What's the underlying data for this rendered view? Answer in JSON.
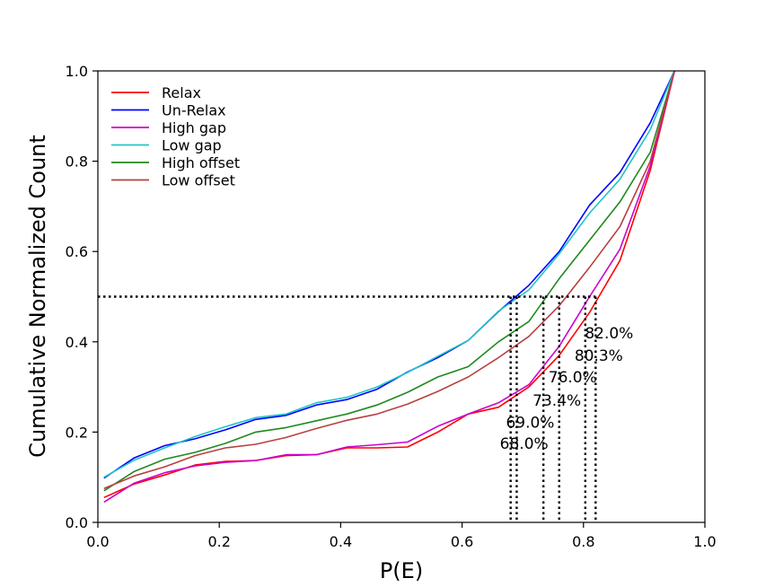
{
  "chart_data": {
    "type": "line",
    "title": "",
    "xlabel": "P(E)",
    "ylabel": "Cumulative Normalized Count",
    "xlim": [
      0.0,
      1.0
    ],
    "ylim": [
      0.0,
      1.0
    ],
    "xticks": [
      0.0,
      0.2,
      0.4,
      0.6,
      0.8,
      1.0
    ],
    "yticks": [
      0.0,
      0.2,
      0.4,
      0.6,
      0.8,
      1.0
    ],
    "xtick_labels": [
      "0.0",
      "0.2",
      "0.4",
      "0.6",
      "0.8",
      "1.0"
    ],
    "ytick_labels": [
      "0.0",
      "0.2",
      "0.4",
      "0.6",
      "0.8",
      "1.0"
    ],
    "grid": false,
    "legend_position": "top-left",
    "x": [
      0.01,
      0.06,
      0.11,
      0.16,
      0.21,
      0.26,
      0.31,
      0.36,
      0.41,
      0.46,
      0.51,
      0.56,
      0.61,
      0.66,
      0.71,
      0.76,
      0.81,
      0.86,
      0.91,
      0.95
    ],
    "series": [
      {
        "name": "Relax",
        "color": "#ff0000",
        "values": [
          0.055,
          0.085,
          0.105,
          0.127,
          0.135,
          0.137,
          0.148,
          0.15,
          0.165,
          0.165,
          0.167,
          0.2,
          0.24,
          0.255,
          0.3,
          0.37,
          0.465,
          0.58,
          0.78,
          1.0
        ]
      },
      {
        "name": "Un-Relax",
        "color": "#0000ff",
        "values": [
          0.098,
          0.143,
          0.17,
          0.185,
          0.205,
          0.228,
          0.237,
          0.26,
          0.272,
          0.295,
          0.333,
          0.365,
          0.403,
          0.467,
          0.525,
          0.6,
          0.703,
          0.775,
          0.885,
          1.0
        ]
      },
      {
        "name": "High gap",
        "color": "#cc00cc",
        "values": [
          0.045,
          0.087,
          0.11,
          0.125,
          0.133,
          0.137,
          0.15,
          0.15,
          0.167,
          0.172,
          0.178,
          0.213,
          0.24,
          0.265,
          0.305,
          0.39,
          0.5,
          0.605,
          0.79,
          1.0
        ]
      },
      {
        "name": "Low gap",
        "color": "#22c4c8",
        "values": [
          0.1,
          0.138,
          0.165,
          0.19,
          0.212,
          0.232,
          0.24,
          0.265,
          0.277,
          0.3,
          0.332,
          0.368,
          0.403,
          0.468,
          0.515,
          0.595,
          0.685,
          0.76,
          0.87,
          1.0
        ]
      },
      {
        "name": "High offset",
        "color": "#1f8a1f",
        "values": [
          0.07,
          0.113,
          0.14,
          0.155,
          0.175,
          0.2,
          0.21,
          0.225,
          0.24,
          0.26,
          0.288,
          0.322,
          0.345,
          0.4,
          0.445,
          0.54,
          0.625,
          0.71,
          0.82,
          1.0
        ]
      },
      {
        "name": "Low offset",
        "color": "#b84040",
        "values": [
          0.075,
          0.103,
          0.123,
          0.148,
          0.165,
          0.173,
          0.188,
          0.208,
          0.226,
          0.24,
          0.262,
          0.29,
          0.322,
          0.365,
          0.412,
          0.48,
          0.565,
          0.655,
          0.8,
          1.0
        ]
      }
    ],
    "median_line": {
      "y": 0.5,
      "style": "dotted",
      "color": "#000000"
    },
    "thresholds": [
      {
        "x": 0.68,
        "label": "68.0%",
        "label_y": 0.163
      },
      {
        "x": 0.69,
        "label": "69.0%",
        "label_y": 0.21
      },
      {
        "x": 0.734,
        "label": "73.4%",
        "label_y": 0.258
      },
      {
        "x": 0.76,
        "label": "76.0%",
        "label_y": 0.31
      },
      {
        "x": 0.803,
        "label": "80.3%",
        "label_y": 0.358
      },
      {
        "x": 0.82,
        "label": "82.0%",
        "label_y": 0.408
      }
    ]
  }
}
